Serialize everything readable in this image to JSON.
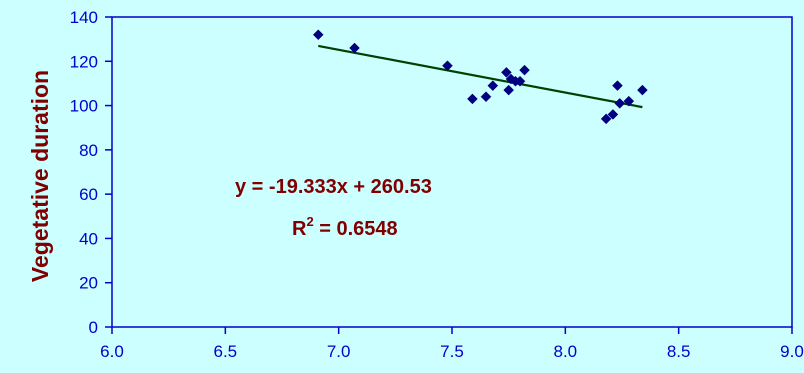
{
  "chart_data": {
    "type": "scatter",
    "ylabel": "Vegetative duration",
    "xlabel": "",
    "xlim": [
      6.0,
      9.0
    ],
    "ylim": [
      0,
      140
    ],
    "x_ticks": [
      "6.0",
      "6.5",
      "7.0",
      "7.5",
      "8.0",
      "8.5",
      "9.0"
    ],
    "y_ticks": [
      "0",
      "20",
      "40",
      "60",
      "80",
      "100",
      "120",
      "140"
    ],
    "grid": false,
    "points": [
      {
        "x": 6.91,
        "y": 132
      },
      {
        "x": 7.07,
        "y": 126
      },
      {
        "x": 7.48,
        "y": 118
      },
      {
        "x": 7.59,
        "y": 103
      },
      {
        "x": 7.65,
        "y": 104
      },
      {
        "x": 7.68,
        "y": 109
      },
      {
        "x": 7.74,
        "y": 115
      },
      {
        "x": 7.75,
        "y": 107
      },
      {
        "x": 7.76,
        "y": 112
      },
      {
        "x": 7.78,
        "y": 111
      },
      {
        "x": 7.8,
        "y": 111
      },
      {
        "x": 7.82,
        "y": 116
      },
      {
        "x": 8.18,
        "y": 94
      },
      {
        "x": 8.21,
        "y": 96
      },
      {
        "x": 8.23,
        "y": 109
      },
      {
        "x": 8.24,
        "y": 101
      },
      {
        "x": 8.28,
        "y": 102
      },
      {
        "x": 8.34,
        "y": 107
      }
    ],
    "trendline": {
      "slope": -19.333,
      "intercept": 260.53,
      "x_range": [
        6.91,
        8.34
      ]
    },
    "equation_text": "y = -19.333x + 260.53",
    "r2_prefix": "R",
    "r2_sup": "2",
    "r2_suffix": " = 0.6548",
    "colors": {
      "background": "#ccffff",
      "points": "#000080",
      "trendline": "#004000",
      "axis": "#0000cc",
      "label": "#800000"
    }
  }
}
